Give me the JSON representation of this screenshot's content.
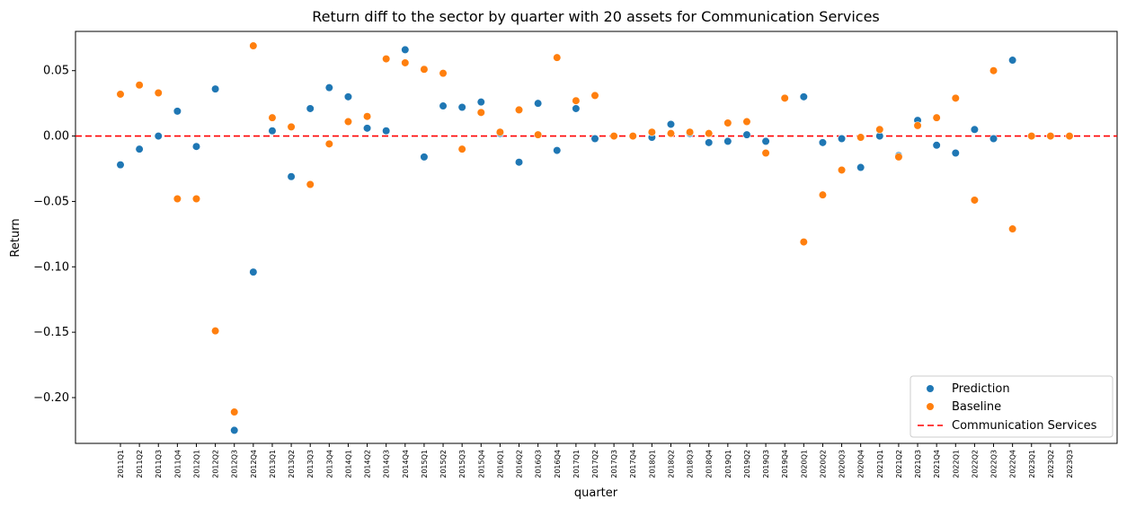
{
  "colors": {
    "prediction": "#1f77b4",
    "baseline": "#ff7f0e",
    "reference_line": "#ff0000",
    "axis": "#000000"
  },
  "chart_data": {
    "type": "scatter",
    "title": "Return diff to the sector by quarter with 20 assets for Communication Services",
    "xlabel": "quarter",
    "ylabel": "Return",
    "ylim": [
      -0.235,
      0.08
    ],
    "yticks": [
      0.05,
      0.0,
      -0.05,
      -0.1,
      -0.15,
      -0.2
    ],
    "ytick_labels": [
      "0.05",
      "0.00",
      "−0.05",
      "−0.10",
      "−0.15",
      "−0.20"
    ],
    "grid": false,
    "legend_position": "lower-right",
    "categories": [
      "2011Q1",
      "2011Q2",
      "2011Q3",
      "2011Q4",
      "2012Q1",
      "2012Q2",
      "2012Q3",
      "2012Q4",
      "2013Q1",
      "2013Q2",
      "2013Q3",
      "2013Q4",
      "2014Q1",
      "2014Q2",
      "2014Q3",
      "2014Q4",
      "2015Q1",
      "2015Q2",
      "2015Q3",
      "2015Q4",
      "2016Q1",
      "2016Q2",
      "2016Q3",
      "2016Q4",
      "2017Q1",
      "2017Q2",
      "2017Q3",
      "2017Q4",
      "2018Q1",
      "2018Q2",
      "2018Q3",
      "2018Q4",
      "2019Q1",
      "2019Q2",
      "2019Q3",
      "2019Q4",
      "2020Q1",
      "2020Q2",
      "2020Q3",
      "2020Q4",
      "2021Q1",
      "2021Q2",
      "2021Q3",
      "2021Q4",
      "2022Q1",
      "2022Q2",
      "2022Q3",
      "2022Q4",
      "2023Q1",
      "2023Q2",
      "2023Q3"
    ],
    "series": [
      {
        "name": "Prediction",
        "color": "#1f77b4",
        "values": [
          -0.022,
          -0.01,
          0.0,
          0.019,
          -0.008,
          0.036,
          -0.225,
          -0.104,
          0.004,
          -0.031,
          0.021,
          0.037,
          0.03,
          0.006,
          0.004,
          0.066,
          -0.016,
          0.023,
          0.022,
          0.026,
          0.002,
          -0.02,
          0.025,
          -0.011,
          0.021,
          -0.002,
          0.0,
          0.0,
          -0.001,
          0.009,
          0.002,
          -0.005,
          -0.004,
          0.001,
          -0.004,
          0.029,
          0.03,
          -0.005,
          -0.002,
          -0.024,
          0.0,
          -0.015,
          0.012,
          -0.007,
          -0.013,
          0.005,
          -0.002,
          0.058,
          0.0,
          0.0,
          0.0
        ]
      },
      {
        "name": "Baseline",
        "color": "#ff7f0e",
        "values": [
          0.032,
          0.039,
          0.033,
          -0.048,
          -0.048,
          -0.149,
          -0.211,
          0.069,
          0.014,
          0.007,
          -0.037,
          -0.006,
          0.011,
          0.015,
          0.059,
          0.056,
          0.051,
          0.048,
          -0.01,
          0.018,
          0.003,
          0.02,
          0.001,
          0.06,
          0.027,
          0.031,
          0.0,
          0.0,
          0.003,
          0.002,
          0.003,
          0.002,
          0.01,
          0.011,
          -0.013,
          0.029,
          -0.081,
          -0.045,
          -0.026,
          -0.001,
          0.005,
          -0.016,
          0.008,
          0.014,
          0.029,
          -0.049,
          0.05,
          -0.071,
          0.0,
          0.0,
          0.0
        ]
      }
    ],
    "reference_line": {
      "name": "Communication Services",
      "y": 0.0,
      "style": "dashed",
      "color": "#ff0000"
    }
  }
}
